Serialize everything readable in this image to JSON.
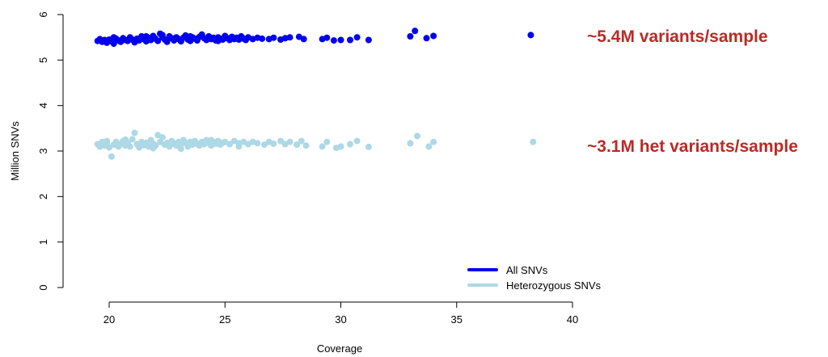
{
  "chart_data": {
    "type": "scatter",
    "xlabel": "Coverage",
    "ylabel": "Million SNVs",
    "xlim": [
      19.3,
      40
    ],
    "ylim": [
      0,
      6
    ],
    "x_ticks": [
      "20",
      "25",
      "30",
      "35",
      "40"
    ],
    "y_ticks": [
      "0",
      "1",
      "2",
      "3",
      "4",
      "5",
      "6"
    ],
    "grid": false,
    "legend_position": "bottom-right",
    "series": [
      {
        "name": "All SNVs",
        "color": "#0000ee",
        "points": [
          [
            19.5,
            5.42
          ],
          [
            19.6,
            5.46
          ],
          [
            19.7,
            5.4
          ],
          [
            19.8,
            5.44
          ],
          [
            19.9,
            5.38
          ],
          [
            20.0,
            5.45
          ],
          [
            20.1,
            5.41
          ],
          [
            20.2,
            5.36
          ],
          [
            20.3,
            5.47
          ],
          [
            20.4,
            5.43
          ],
          [
            20.5,
            5.4
          ],
          [
            20.6,
            5.48
          ],
          [
            20.7,
            5.44
          ],
          [
            20.8,
            5.42
          ],
          [
            20.9,
            5.5
          ],
          [
            21.0,
            5.45
          ],
          [
            21.1,
            5.39
          ],
          [
            21.2,
            5.47
          ],
          [
            21.3,
            5.43
          ],
          [
            21.4,
            5.52
          ],
          [
            21.5,
            5.46
          ],
          [
            21.6,
            5.41
          ],
          [
            21.7,
            5.49
          ],
          [
            21.8,
            5.44
          ],
          [
            21.9,
            5.53
          ],
          [
            22.0,
            5.47
          ],
          [
            22.1,
            5.42
          ],
          [
            22.2,
            5.58
          ],
          [
            22.3,
            5.5
          ],
          [
            22.4,
            5.45
          ],
          [
            22.5,
            5.4
          ],
          [
            22.6,
            5.52
          ],
          [
            22.7,
            5.48
          ],
          [
            22.8,
            5.43
          ],
          [
            22.9,
            5.5
          ],
          [
            23.0,
            5.46
          ],
          [
            23.1,
            5.41
          ],
          [
            23.2,
            5.49
          ],
          [
            23.3,
            5.54
          ],
          [
            23.4,
            5.45
          ],
          [
            23.5,
            5.42
          ],
          [
            23.6,
            5.5
          ],
          [
            23.7,
            5.47
          ],
          [
            23.8,
            5.43
          ],
          [
            23.9,
            5.51
          ],
          [
            24.0,
            5.56
          ],
          [
            24.1,
            5.48
          ],
          [
            24.2,
            5.44
          ],
          [
            24.3,
            5.52
          ],
          [
            24.4,
            5.46
          ],
          [
            24.5,
            5.49
          ],
          [
            24.6,
            5.43
          ],
          [
            24.7,
            5.5
          ],
          [
            24.8,
            5.47
          ],
          [
            24.9,
            5.45
          ],
          [
            25.0,
            5.53
          ],
          [
            25.1,
            5.48
          ],
          [
            25.2,
            5.44
          ],
          [
            25.3,
            5.51
          ],
          [
            25.4,
            5.46
          ],
          [
            25.5,
            5.49
          ],
          [
            25.6,
            5.45
          ],
          [
            25.7,
            5.52
          ],
          [
            25.8,
            5.47
          ],
          [
            26.0,
            5.5
          ],
          [
            26.2,
            5.46
          ],
          [
            26.4,
            5.49
          ],
          [
            26.6,
            5.47
          ],
          [
            26.9,
            5.46
          ],
          [
            27.1,
            5.49
          ],
          [
            27.4,
            5.45
          ],
          [
            27.6,
            5.48
          ],
          [
            27.8,
            5.5
          ],
          [
            28.2,
            5.51
          ],
          [
            28.4,
            5.46
          ],
          [
            29.2,
            5.46
          ],
          [
            29.4,
            5.49
          ],
          [
            29.7,
            5.43
          ],
          [
            30.0,
            5.44
          ],
          [
            30.4,
            5.44
          ],
          [
            30.7,
            5.5
          ],
          [
            31.2,
            5.44
          ],
          [
            33.0,
            5.52
          ],
          [
            33.2,
            5.64
          ],
          [
            33.7,
            5.48
          ],
          [
            34.0,
            5.53
          ],
          [
            38.2,
            5.55
          ],
          [
            20.2,
            5.5
          ],
          [
            21.6,
            5.52
          ],
          [
            22.3,
            5.55
          ],
          [
            23.5,
            5.52
          ],
          [
            24.7,
            5.42
          ],
          [
            25.9,
            5.44
          ]
        ]
      },
      {
        "name": "Heterozygous SNVs",
        "color": "#add8e6",
        "points": [
          [
            19.5,
            3.15
          ],
          [
            19.6,
            3.1
          ],
          [
            19.7,
            3.2
          ],
          [
            19.8,
            3.12
          ],
          [
            19.9,
            3.18
          ],
          [
            20.0,
            3.08
          ],
          [
            20.1,
            2.88
          ],
          [
            20.2,
            3.14
          ],
          [
            20.3,
            3.2
          ],
          [
            20.4,
            3.1
          ],
          [
            20.5,
            3.16
          ],
          [
            20.6,
            3.22
          ],
          [
            20.7,
            3.12
          ],
          [
            20.8,
            3.18
          ],
          [
            20.9,
            3.1
          ],
          [
            21.0,
            3.26
          ],
          [
            21.1,
            3.4
          ],
          [
            21.2,
            3.15
          ],
          [
            21.3,
            3.08
          ],
          [
            21.4,
            3.2
          ],
          [
            21.5,
            3.13
          ],
          [
            21.6,
            3.18
          ],
          [
            21.7,
            3.1
          ],
          [
            21.8,
            3.24
          ],
          [
            21.9,
            3.16
          ],
          [
            22.0,
            3.12
          ],
          [
            22.1,
            3.35
          ],
          [
            22.2,
            3.2
          ],
          [
            22.3,
            3.3
          ],
          [
            22.4,
            3.14
          ],
          [
            22.5,
            3.18
          ],
          [
            22.6,
            3.1
          ],
          [
            22.7,
            3.22
          ],
          [
            22.8,
            3.16
          ],
          [
            22.9,
            3.12
          ],
          [
            23.0,
            3.2
          ],
          [
            23.1,
            3.14
          ],
          [
            23.2,
            3.24
          ],
          [
            23.3,
            3.18
          ],
          [
            23.4,
            3.1
          ],
          [
            23.5,
            3.2
          ],
          [
            23.6,
            3.14
          ],
          [
            23.7,
            3.22
          ],
          [
            23.8,
            3.16
          ],
          [
            23.9,
            3.12
          ],
          [
            24.0,
            3.2
          ],
          [
            24.1,
            3.15
          ],
          [
            24.2,
            3.24
          ],
          [
            24.3,
            3.18
          ],
          [
            24.4,
            3.12
          ],
          [
            24.5,
            3.2
          ],
          [
            24.6,
            3.16
          ],
          [
            24.7,
            3.22
          ],
          [
            24.8,
            3.14
          ],
          [
            24.9,
            3.18
          ],
          [
            25.0,
            3.2
          ],
          [
            25.2,
            3.15
          ],
          [
            25.4,
            3.22
          ],
          [
            25.6,
            3.17
          ],
          [
            25.8,
            3.2
          ],
          [
            26.0,
            3.15
          ],
          [
            26.2,
            3.2
          ],
          [
            26.4,
            3.17
          ],
          [
            26.7,
            3.14
          ],
          [
            26.9,
            3.2
          ],
          [
            27.1,
            3.16
          ],
          [
            27.4,
            3.22
          ],
          [
            27.6,
            3.15
          ],
          [
            27.8,
            3.2
          ],
          [
            28.1,
            3.14
          ],
          [
            28.3,
            3.22
          ],
          [
            28.5,
            3.12
          ],
          [
            29.2,
            3.1
          ],
          [
            29.4,
            3.2
          ],
          [
            29.8,
            3.07
          ],
          [
            30.0,
            3.1
          ],
          [
            30.4,
            3.15
          ],
          [
            30.7,
            3.22
          ],
          [
            31.2,
            3.09
          ],
          [
            33.0,
            3.17
          ],
          [
            33.3,
            3.33
          ],
          [
            33.8,
            3.1
          ],
          [
            34.0,
            3.2
          ],
          [
            38.3,
            3.2
          ],
          [
            19.9,
            3.22
          ],
          [
            20.7,
            3.25
          ],
          [
            21.9,
            3.06
          ],
          [
            23.1,
            3.05
          ],
          [
            24.4,
            3.24
          ],
          [
            25.6,
            3.1
          ]
        ]
      }
    ],
    "annotations": [
      {
        "text": "~5.4M variants/sample",
        "y": 5.4,
        "color": "#bb2a26"
      },
      {
        "text": "~3.1M het variants/sample",
        "y": 3.1,
        "color": "#bb2a26"
      }
    ]
  }
}
